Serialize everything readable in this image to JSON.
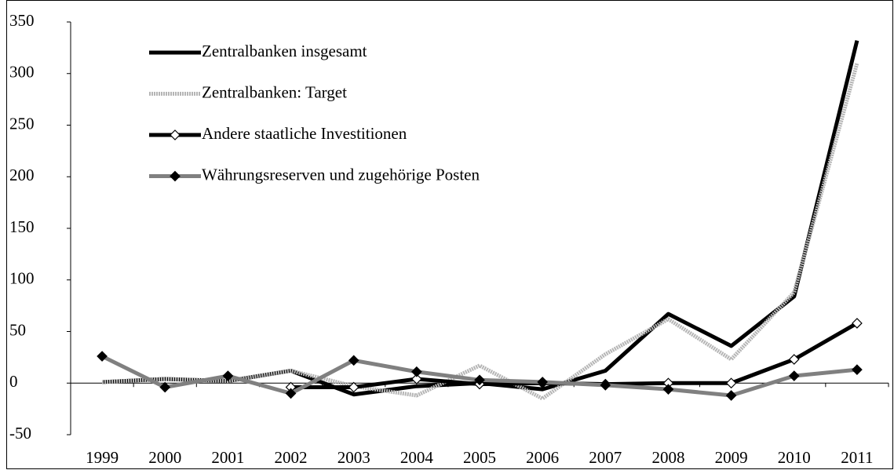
{
  "chart_data": {
    "type": "line",
    "categories": [
      "1999",
      "2000",
      "2001",
      "2002",
      "2003",
      "2004",
      "2005",
      "2006",
      "2007",
      "2008",
      "2009",
      "2010",
      "2011"
    ],
    "series": [
      {
        "name": "Zentralbanken insgesamt",
        "color": "#000000",
        "values": [
          1,
          4,
          2,
          12,
          -11,
          -3,
          0,
          -6,
          12,
          67,
          36,
          84,
          332
        ]
      },
      {
        "name": "Zentralbanken: Target",
        "color": "#b5b5b5",
        "values": [
          1,
          4,
          2,
          12,
          -3,
          -12,
          17,
          -15,
          28,
          62,
          23,
          88,
          310
        ]
      },
      {
        "name": "Andere staatliche Investitionen",
        "color": "#000000",
        "marker": "diamond",
        "marker_fill": "#ffffff",
        "values": [
          null,
          null,
          null,
          -4,
          -4,
          4,
          -1,
          0,
          -1,
          0,
          0,
          23,
          58
        ]
      },
      {
        "name": "Währungsreserven und zugehörige Posten",
        "color": "#808080",
        "marker": "diamond",
        "marker_fill": "#000000",
        "values": [
          26,
          -4,
          7,
          -10,
          22,
          11,
          3,
          1,
          -2,
          -6,
          -12,
          7,
          13
        ]
      }
    ],
    "ylim": [
      -50,
      350
    ],
    "yticks": [
      -50,
      0,
      50,
      100,
      150,
      200,
      250,
      300,
      350
    ]
  }
}
